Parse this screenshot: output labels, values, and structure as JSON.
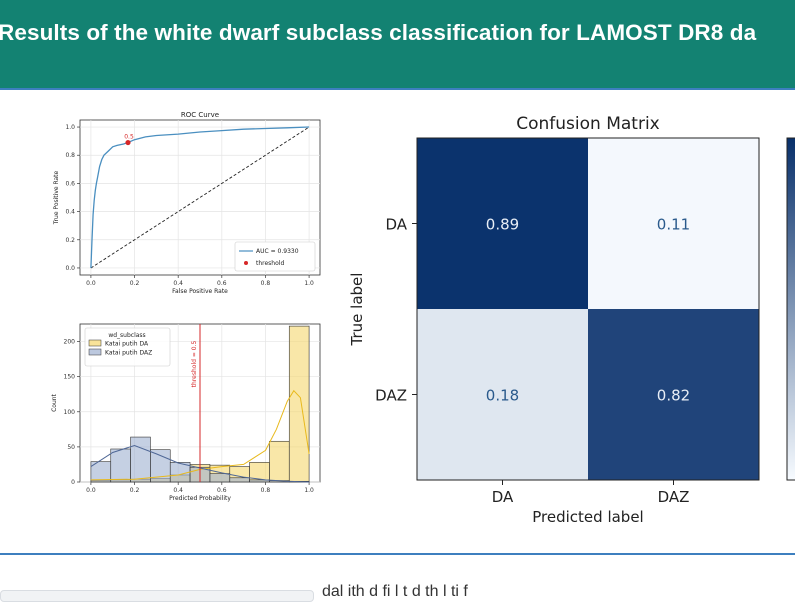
{
  "header": {
    "title": "Results of the white dwarf subclass classification for LAMOST DR8 da",
    "background": "#138272",
    "accent": "#3d7fbf"
  },
  "footer": {
    "partial_text": "dal ith    d fi l  t             d th   l ti   f"
  },
  "chart_data": [
    {
      "type": "line",
      "title": "ROC Curve",
      "xlabel": "False Positive Rate",
      "ylabel": "True Positive Rate",
      "xlim": [
        0.0,
        1.0
      ],
      "ylim": [
        0.0,
        1.0
      ],
      "xticks": [
        "0.0",
        "0.2",
        "0.4",
        "0.6",
        "0.8",
        "1.0"
      ],
      "yticks": [
        "0.0",
        "0.2",
        "0.4",
        "0.6",
        "0.8",
        "1.0"
      ],
      "grid": true,
      "legend_position": "lower-right",
      "series": [
        {
          "name": "AUC = 0.9330",
          "color": "#4a8fc0",
          "x": [
            0.0,
            0.005,
            0.01,
            0.015,
            0.02,
            0.025,
            0.03,
            0.04,
            0.05,
            0.06,
            0.08,
            0.1,
            0.12,
            0.15,
            0.17,
            0.2,
            0.25,
            0.3,
            0.4,
            0.5,
            0.6,
            0.7,
            0.8,
            0.9,
            1.0
          ],
          "y": [
            0.0,
            0.2,
            0.38,
            0.48,
            0.55,
            0.6,
            0.64,
            0.72,
            0.77,
            0.8,
            0.83,
            0.86,
            0.87,
            0.88,
            0.89,
            0.91,
            0.93,
            0.94,
            0.95,
            0.965,
            0.975,
            0.985,
            0.99,
            0.995,
            1.0
          ]
        }
      ],
      "diagonal": {
        "x": [
          0,
          1
        ],
        "y": [
          0,
          1
        ],
        "style": "dashed",
        "color": "#222222"
      },
      "threshold": {
        "name": "threshold",
        "label": "0.5",
        "x": 0.17,
        "y": 0.89,
        "color": "#d62728"
      }
    },
    {
      "type": "bar",
      "subtype": "histogram",
      "xlabel": "Predicted Probability",
      "ylabel": "Count",
      "xlim": [
        -0.05,
        1.05
      ],
      "ylim": [
        0,
        225
      ],
      "xticks": [
        "0.0",
        "0.2",
        "0.4",
        "0.6",
        "0.8",
        "1.0"
      ],
      "yticks": [
        "0",
        "50",
        "100",
        "150",
        "200"
      ],
      "grid": true,
      "legend_title": "wd_subclass",
      "legend_position": "top-left",
      "bin_edges": [
        0.0,
        0.0909,
        0.1818,
        0.2727,
        0.3636,
        0.4545,
        0.5455,
        0.6364,
        0.7273,
        0.8182,
        0.9091,
        1.0
      ],
      "series": [
        {
          "name": "Katai putih DA",
          "color": "#f5d76e",
          "values": [
            2,
            3,
            4,
            5,
            10,
            25,
            24,
            22,
            28,
            58,
            222
          ]
        },
        {
          "name": "Katai putih DAZ",
          "color": "#9fb0d0",
          "values": [
            29,
            47,
            64,
            46,
            28,
            21,
            12,
            6,
            3,
            2,
            1
          ]
        }
      ],
      "kde_series": [
        {
          "name": "Katai putih DA",
          "x": [
            0.0,
            0.2,
            0.4,
            0.5,
            0.6,
            0.7,
            0.8,
            0.85,
            0.9,
            0.93,
            0.96,
            1.0
          ],
          "y": [
            3,
            4,
            10,
            18,
            22,
            25,
            45,
            75,
            115,
            130,
            120,
            40
          ]
        },
        {
          "name": "Katai putih DAZ",
          "x": [
            0.0,
            0.1,
            0.2,
            0.3,
            0.4,
            0.5,
            0.6,
            0.7,
            0.8,
            0.9,
            1.0
          ],
          "y": [
            22,
            42,
            52,
            40,
            27,
            20,
            13,
            7,
            3,
            1,
            0
          ]
        }
      ],
      "threshold_line": {
        "x": 0.5,
        "label": "threshold = 0.5",
        "color": "#d62728"
      }
    },
    {
      "type": "heatmap",
      "title": "Confusion Matrix",
      "xlabel": "Predicted label",
      "ylabel": "True label",
      "x_categories": [
        "DA",
        "DAZ"
      ],
      "y_categories": [
        "DA",
        "DAZ"
      ],
      "values": [
        [
          0.89,
          0.11
        ],
        [
          0.18,
          0.82
        ]
      ],
      "colormap": "Blues"
    }
  ]
}
